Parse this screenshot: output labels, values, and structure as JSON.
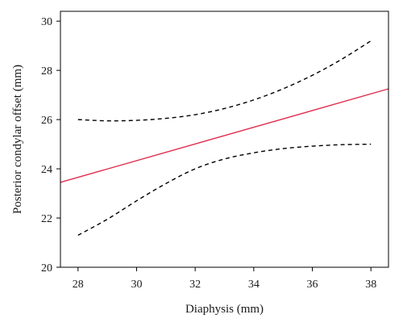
{
  "chart_data": {
    "type": "line",
    "title": "",
    "xlabel": "Diaphysis (mm)",
    "ylabel": "Posterior condylar offset (mm)",
    "xlim": [
      27.4,
      38.6
    ],
    "ylim": [
      20,
      30.4
    ],
    "xticks": [
      28,
      30,
      32,
      34,
      36,
      38
    ],
    "yticks": [
      20,
      22,
      24,
      26,
      28,
      30
    ],
    "grid": false,
    "legend": "none",
    "series": [
      {
        "role": "fit",
        "style": "solid",
        "color": "#e0304e",
        "x": [
          27.4,
          38.6
        ],
        "y": [
          23.45,
          27.25
        ]
      },
      {
        "role": "upper-band",
        "style": "dashed",
        "color": "#000000",
        "x": [
          28,
          29,
          30,
          31,
          32,
          33,
          34,
          35,
          36,
          37,
          38
        ],
        "y": [
          26.0,
          25.95,
          25.97,
          26.05,
          26.2,
          26.45,
          26.8,
          27.25,
          27.8,
          28.45,
          29.2
        ]
      },
      {
        "role": "lower-band",
        "style": "dashed",
        "color": "#000000",
        "x": [
          28,
          29,
          30,
          31,
          32,
          33,
          34,
          35,
          36,
          37,
          38
        ],
        "y": [
          21.3,
          21.95,
          22.7,
          23.4,
          24.0,
          24.4,
          24.65,
          24.82,
          24.92,
          24.98,
          25.0
        ]
      }
    ]
  }
}
